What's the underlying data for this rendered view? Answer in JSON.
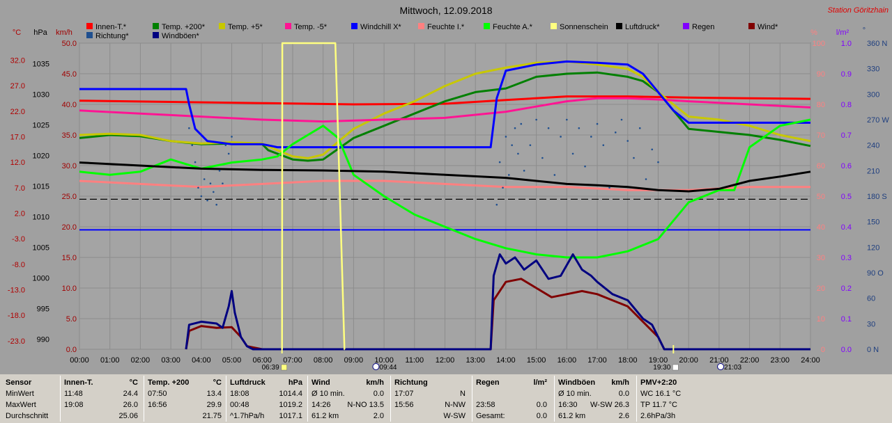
{
  "header": {
    "title": "Mittwoch, 12.09.2018",
    "station": "Station Göritzhain"
  },
  "legend": [
    {
      "label": "Innen-T.*",
      "color": "#ff0000"
    },
    {
      "label": "Temp. +200*",
      "color": "#008000"
    },
    {
      "label": "Temp. +5*",
      "color": "#c8c800"
    },
    {
      "label": "Temp. -5*",
      "color": "#ff1493"
    },
    {
      "label": "Windchill X*",
      "color": "#0000ff"
    },
    {
      "label": "Feuchte I.*",
      "color": "#ff8080"
    },
    {
      "label": "Feuchte A.*",
      "color": "#00ff00"
    },
    {
      "label": "Sonnenschein",
      "color": "#ffff80"
    },
    {
      "label": "Luftdruck*",
      "color": "#000000"
    },
    {
      "label": "Regen",
      "color": "#8000ff"
    },
    {
      "label": "Wind*",
      "color": "#800000"
    },
    {
      "label": "Richtung*",
      "color": "#1f4f8f"
    },
    {
      "label": "Windböen*",
      "color": "#000080"
    }
  ],
  "axes": {
    "unit_c": "°C",
    "unit_hpa": "hPa",
    "unit_kmh": "km/h",
    "unit_pct": "%",
    "unit_lm2": "l/m²",
    "unit_deg": "°",
    "c_ticks": [
      "32.0",
      "27.0",
      "22.0",
      "17.0",
      "12.0",
      "7.0",
      "2.0",
      "-3.0",
      "-8.0",
      "-13.0",
      "-18.0",
      "-23.0"
    ],
    "hpa_ticks": [
      "1035",
      "1030",
      "1025",
      "1020",
      "1015",
      "1010",
      "1005",
      "1000",
      "995",
      "990"
    ],
    "kmh_ticks": [
      "50.0",
      "45.0",
      "40.0",
      "35.0",
      "30.0",
      "25.0",
      "20.0",
      "15.0",
      "10.0",
      "5.0",
      "0.0"
    ],
    "pct_ticks": [
      "100",
      "90",
      "80",
      "70",
      "60",
      "50",
      "40",
      "30",
      "20",
      "10",
      "0"
    ],
    "lm2_ticks": [
      "1.0",
      "0.9",
      "0.8",
      "0.7",
      "0.6",
      "0.5",
      "0.4",
      "0.3",
      "0.2",
      "0.1",
      "0.0"
    ],
    "deg_ticks": [
      "360 N",
      "330",
      "300",
      "270 W",
      "240",
      "210",
      "180 S",
      "150",
      "120",
      "90 O",
      "60",
      "30",
      "0 N"
    ],
    "time_ticks": [
      "00:00",
      "01:00",
      "02:00",
      "03:00",
      "04:00",
      "05:00",
      "06:00",
      "07:00",
      "08:00",
      "09:00",
      "10:00",
      "11:00",
      "12:00",
      "13:00",
      "14:00",
      "15:00",
      "16:00",
      "17:00",
      "18:00",
      "19:00",
      "20:00",
      "21:00",
      "22:00",
      "23:00",
      "24:00"
    ],
    "sunrise": "06:39",
    "sunset": "19:30",
    "moonrise": "09:44",
    "moonset": "21:03"
  },
  "chart_data": {
    "type": "line",
    "title": "Mittwoch, 12.09.2018",
    "x_unit": "hours",
    "xlim": [
      0,
      24
    ],
    "ylim_kmh": [
      0,
      50
    ],
    "ylim_c": [
      -23,
      37
    ],
    "ylim_hpa": [
      990,
      1040
    ],
    "ylim_pct": [
      0,
      100
    ],
    "ylim_deg": [
      0,
      360
    ],
    "series": [
      {
        "name": "Innen-T.*",
        "axis": "kmh",
        "color": "#ff0000",
        "x": [
          0,
          3,
          6,
          9,
          12,
          14,
          16,
          18,
          20,
          22,
          24
        ],
        "y": [
          40.6,
          40.4,
          40.2,
          40.0,
          40.1,
          40.7,
          41.3,
          41.3,
          41.1,
          41.0,
          40.9
        ]
      },
      {
        "name": "Temp. +200*",
        "axis": "kmh",
        "color": "#008000",
        "x": [
          0,
          1,
          2,
          3,
          4,
          5,
          6,
          6.2,
          7,
          7.5,
          8,
          9,
          10,
          11,
          12,
          13,
          14,
          15,
          16,
          17,
          18,
          18.5,
          19,
          19.5,
          20,
          21,
          22,
          23,
          24
        ],
        "y": [
          34.5,
          35.0,
          34.8,
          34.0,
          33.5,
          33.6,
          33.5,
          32.5,
          31.0,
          30.8,
          31.0,
          34.5,
          36.5,
          38.5,
          40.5,
          42.0,
          42.6,
          44.5,
          45.0,
          45.2,
          44.5,
          43.8,
          42.0,
          39.0,
          36.0,
          35.5,
          35.0,
          34.2,
          33.2
        ]
      },
      {
        "name": "Temp. +5*",
        "axis": "kmh",
        "color": "#c8c800",
        "x": [
          0,
          1,
          2,
          3,
          4,
          5,
          6,
          6.5,
          7,
          7.5,
          8,
          9,
          10,
          11,
          12,
          13,
          14,
          15,
          16,
          17,
          18,
          18.5,
          19,
          19.5,
          20,
          21,
          22,
          23,
          24
        ],
        "y": [
          35.0,
          35.2,
          35.0,
          34.0,
          33.6,
          33.8,
          33.6,
          32.5,
          31.5,
          31.2,
          31.8,
          36.0,
          38.5,
          40.5,
          43.0,
          45.0,
          46.0,
          46.8,
          47.0,
          46.5,
          45.8,
          44.5,
          42.0,
          40.0,
          38.0,
          37.5,
          36.5,
          35.0,
          34.0
        ]
      },
      {
        "name": "Temp. -5*",
        "axis": "kmh",
        "color": "#ff1493",
        "x": [
          0,
          2,
          4,
          6,
          8,
          10,
          12,
          14,
          16,
          17,
          18,
          19,
          20,
          22,
          24
        ],
        "y": [
          39.0,
          38.5,
          38.0,
          37.5,
          37.2,
          37.5,
          37.8,
          38.8,
          40.5,
          41.0,
          41.0,
          40.8,
          40.5,
          40.0,
          39.5
        ]
      },
      {
        "name": "Windchill X*",
        "axis": "kmh",
        "color": "#0000ff",
        "x": [
          0,
          3.5,
          3.6,
          3.8,
          4.2,
          5,
          6,
          6.5,
          13.5,
          13.7,
          14,
          15,
          16,
          17,
          18,
          18.5,
          19,
          19.5,
          20,
          21,
          24
        ],
        "y": [
          42.5,
          42.5,
          40.0,
          36.0,
          34.0,
          33.5,
          33.5,
          33.0,
          33.0,
          41.0,
          45.5,
          46.5,
          47.0,
          46.8,
          46.5,
          45.0,
          42.0,
          39.0,
          37.0,
          37.0,
          37.0
        ]
      },
      {
        "name": "Windchill X* (line)",
        "axis": "kmh",
        "color": "#0000ff",
        "x": [
          0,
          24
        ],
        "y": [
          19.5,
          19.5
        ]
      },
      {
        "name": "Feuchte I.*",
        "axis": "pct",
        "color": "#ff8080",
        "x": [
          0,
          2,
          4,
          6,
          8,
          10,
          12,
          14,
          16,
          18,
          20,
          22,
          24
        ],
        "y": [
          55,
          54,
          53,
          54,
          55,
          55,
          54,
          53,
          53,
          52,
          52,
          53,
          53
        ]
      },
      {
        "name": "Feuchte A.*",
        "axis": "pct",
        "color": "#00ff00",
        "x": [
          0,
          1,
          2,
          3,
          4,
          5,
          6,
          6.5,
          7,
          7.5,
          8,
          8.5,
          9,
          10,
          11,
          12,
          13,
          14,
          15,
          16,
          17,
          18,
          19,
          19.5,
          20,
          21,
          21.5,
          22,
          23,
          24
        ],
        "y": [
          58,
          57,
          58,
          62,
          59,
          61,
          62,
          63,
          67,
          70,
          73,
          69,
          57,
          50,
          44,
          40,
          36,
          33,
          31,
          30,
          30,
          32,
          36,
          42,
          48,
          52,
          52,
          66,
          73,
          75
        ]
      },
      {
        "name": "Luftdruck*",
        "axis": "hpa",
        "color": "#000000",
        "x": [
          0,
          2,
          4,
          6,
          8,
          10,
          12,
          14,
          16,
          17,
          18,
          19,
          20,
          21,
          22,
          23,
          24
        ],
        "y": [
          1020.5,
          1020,
          1019.5,
          1019.3,
          1019.2,
          1019,
          1018.5,
          1018,
          1017,
          1016.8,
          1016.5,
          1016,
          1015.8,
          1016.2,
          1017.5,
          1018.2,
          1019
        ]
      },
      {
        "name": "Wind*",
        "axis": "kmh",
        "color": "#800000",
        "x": [
          3.5,
          3.6,
          4,
          4.5,
          5,
          5.3,
          5.5,
          6,
          13.5,
          13.6,
          14,
          14.5,
          15,
          15.5,
          16,
          16.5,
          17,
          17.5,
          18,
          18.5,
          19,
          19.2,
          24
        ],
        "y": [
          0,
          3.0,
          3.8,
          3.5,
          3.6,
          2.0,
          0.5,
          0,
          0,
          8.0,
          11.0,
          11.5,
          10.0,
          8.5,
          9.0,
          9.5,
          9.0,
          8.0,
          7.0,
          4.5,
          2.0,
          0,
          0
        ]
      },
      {
        "name": "Windböen*",
        "axis": "kmh",
        "color": "#000080",
        "x": [
          3.5,
          3.6,
          4,
          4.5,
          4.7,
          4.9,
          5,
          5.1,
          5.3,
          5.5,
          5.7,
          6,
          13.5,
          13.6,
          13.8,
          14,
          14.3,
          14.6,
          15,
          15.4,
          15.8,
          16.2,
          16.5,
          16.8,
          17,
          17.5,
          18,
          18.5,
          18.8,
          19,
          19.2,
          24
        ],
        "y": [
          0,
          4.0,
          4.5,
          4.2,
          3.5,
          7.0,
          9.5,
          6.0,
          2.0,
          0.5,
          0,
          0,
          0,
          12.0,
          15.5,
          14.0,
          15.0,
          13.0,
          14.5,
          11.5,
          12.0,
          15.5,
          13.0,
          12.0,
          11.0,
          9.0,
          8.0,
          5.0,
          4.0,
          2.0,
          0,
          0
        ]
      },
      {
        "name": "Sonnenschein",
        "axis": "kmh",
        "color": "#ffff80",
        "x": [
          6.65,
          6.66,
          8.4,
          8.7,
          8.71
        ],
        "y": [
          0,
          50,
          50,
          0,
          0
        ]
      }
    ],
    "reference_lines": [
      {
        "axis": "kmh",
        "y": 24.5,
        "color": "#000000",
        "style": "dashed"
      }
    ],
    "direction_points": {
      "name": "Richtung*",
      "axis": "deg",
      "color": "#1f4f8f",
      "x": [
        3.6,
        3.7,
        3.8,
        3.9,
        4.0,
        4.1,
        4.2,
        4.3,
        4.4,
        4.5,
        4.6,
        4.7,
        4.8,
        4.9,
        5.0,
        13.7,
        13.8,
        13.9,
        14.0,
        14.1,
        14.2,
        14.3,
        14.4,
        14.5,
        14.6,
        14.8,
        15.0,
        15.2,
        15.4,
        15.6,
        15.8,
        16.0,
        16.2,
        16.4,
        16.6,
        16.8,
        17.0,
        17.2,
        17.4,
        17.6,
        17.8,
        18.0,
        18.2,
        18.4,
        18.6,
        18.8,
        19.0
      ],
      "y": [
        260,
        240,
        220,
        190,
        180,
        200,
        175,
        195,
        185,
        170,
        210,
        195,
        240,
        230,
        250,
        170,
        220,
        190,
        250,
        205,
        240,
        260,
        230,
        265,
        210,
        240,
        270,
        225,
        260,
        205,
        250,
        270,
        230,
        260,
        215,
        250,
        265,
        240,
        190,
        255,
        270,
        245,
        225,
        260,
        200,
        235,
        220
      ]
    }
  },
  "stats": [
    {
      "header": [
        "Sensor"
      ],
      "rows": [
        [
          "MinWert"
        ],
        [
          "MaxWert"
        ],
        [
          "Durchschnitt"
        ]
      ]
    },
    {
      "header": [
        "Innen-T.",
        "°C"
      ],
      "rows": [
        [
          "11:48",
          "24.4"
        ],
        [
          "19:08",
          "26.0"
        ],
        [
          "",
          "25.06"
        ]
      ]
    },
    {
      "header": [
        "Temp. +200",
        "°C"
      ],
      "rows": [
        [
          "07:50",
          "13.4"
        ],
        [
          "16:56",
          "29.9"
        ],
        [
          "",
          "21.75"
        ]
      ]
    },
    {
      "header": [
        "Luftdruck",
        "hPa"
      ],
      "rows": [
        [
          "18:08",
          "1014.4"
        ],
        [
          "00:48",
          "1019.2"
        ],
        [
          "^1.7hPa/h",
          "1017.1"
        ]
      ]
    },
    {
      "header": [
        "Wind",
        "km/h"
      ],
      "rows": [
        [
          "Ø 10 min.",
          "0.0"
        ],
        [
          "14:26",
          "N-NO 13.5"
        ],
        [
          "61.2 km",
          "2.0"
        ]
      ]
    },
    {
      "header": [
        "Richtung",
        ""
      ],
      "rows": [
        [
          "17:07",
          "N"
        ],
        [
          "15:56",
          "N-NW"
        ],
        [
          "",
          "W-SW"
        ]
      ]
    },
    {
      "header": [
        "Regen",
        "l/m²"
      ],
      "rows": [
        [
          "",
          ""
        ],
        [
          "23:58",
          "0.0"
        ],
        [
          "Gesamt:",
          "0.0"
        ]
      ]
    },
    {
      "header": [
        "Windböen",
        "km/h"
      ],
      "rows": [
        [
          "Ø 10 min.",
          "0.0"
        ],
        [
          "16:30",
          "W-SW 26.3"
        ],
        [
          "61.2 km",
          "2.6"
        ]
      ]
    },
    {
      "header": [
        "PMV+2:20",
        ""
      ],
      "rows": [
        [
          "WC 16.1 °C",
          ""
        ],
        [
          "TP 11.7 °C",
          ""
        ],
        [
          "2.6hPa/3h",
          ""
        ]
      ]
    }
  ]
}
